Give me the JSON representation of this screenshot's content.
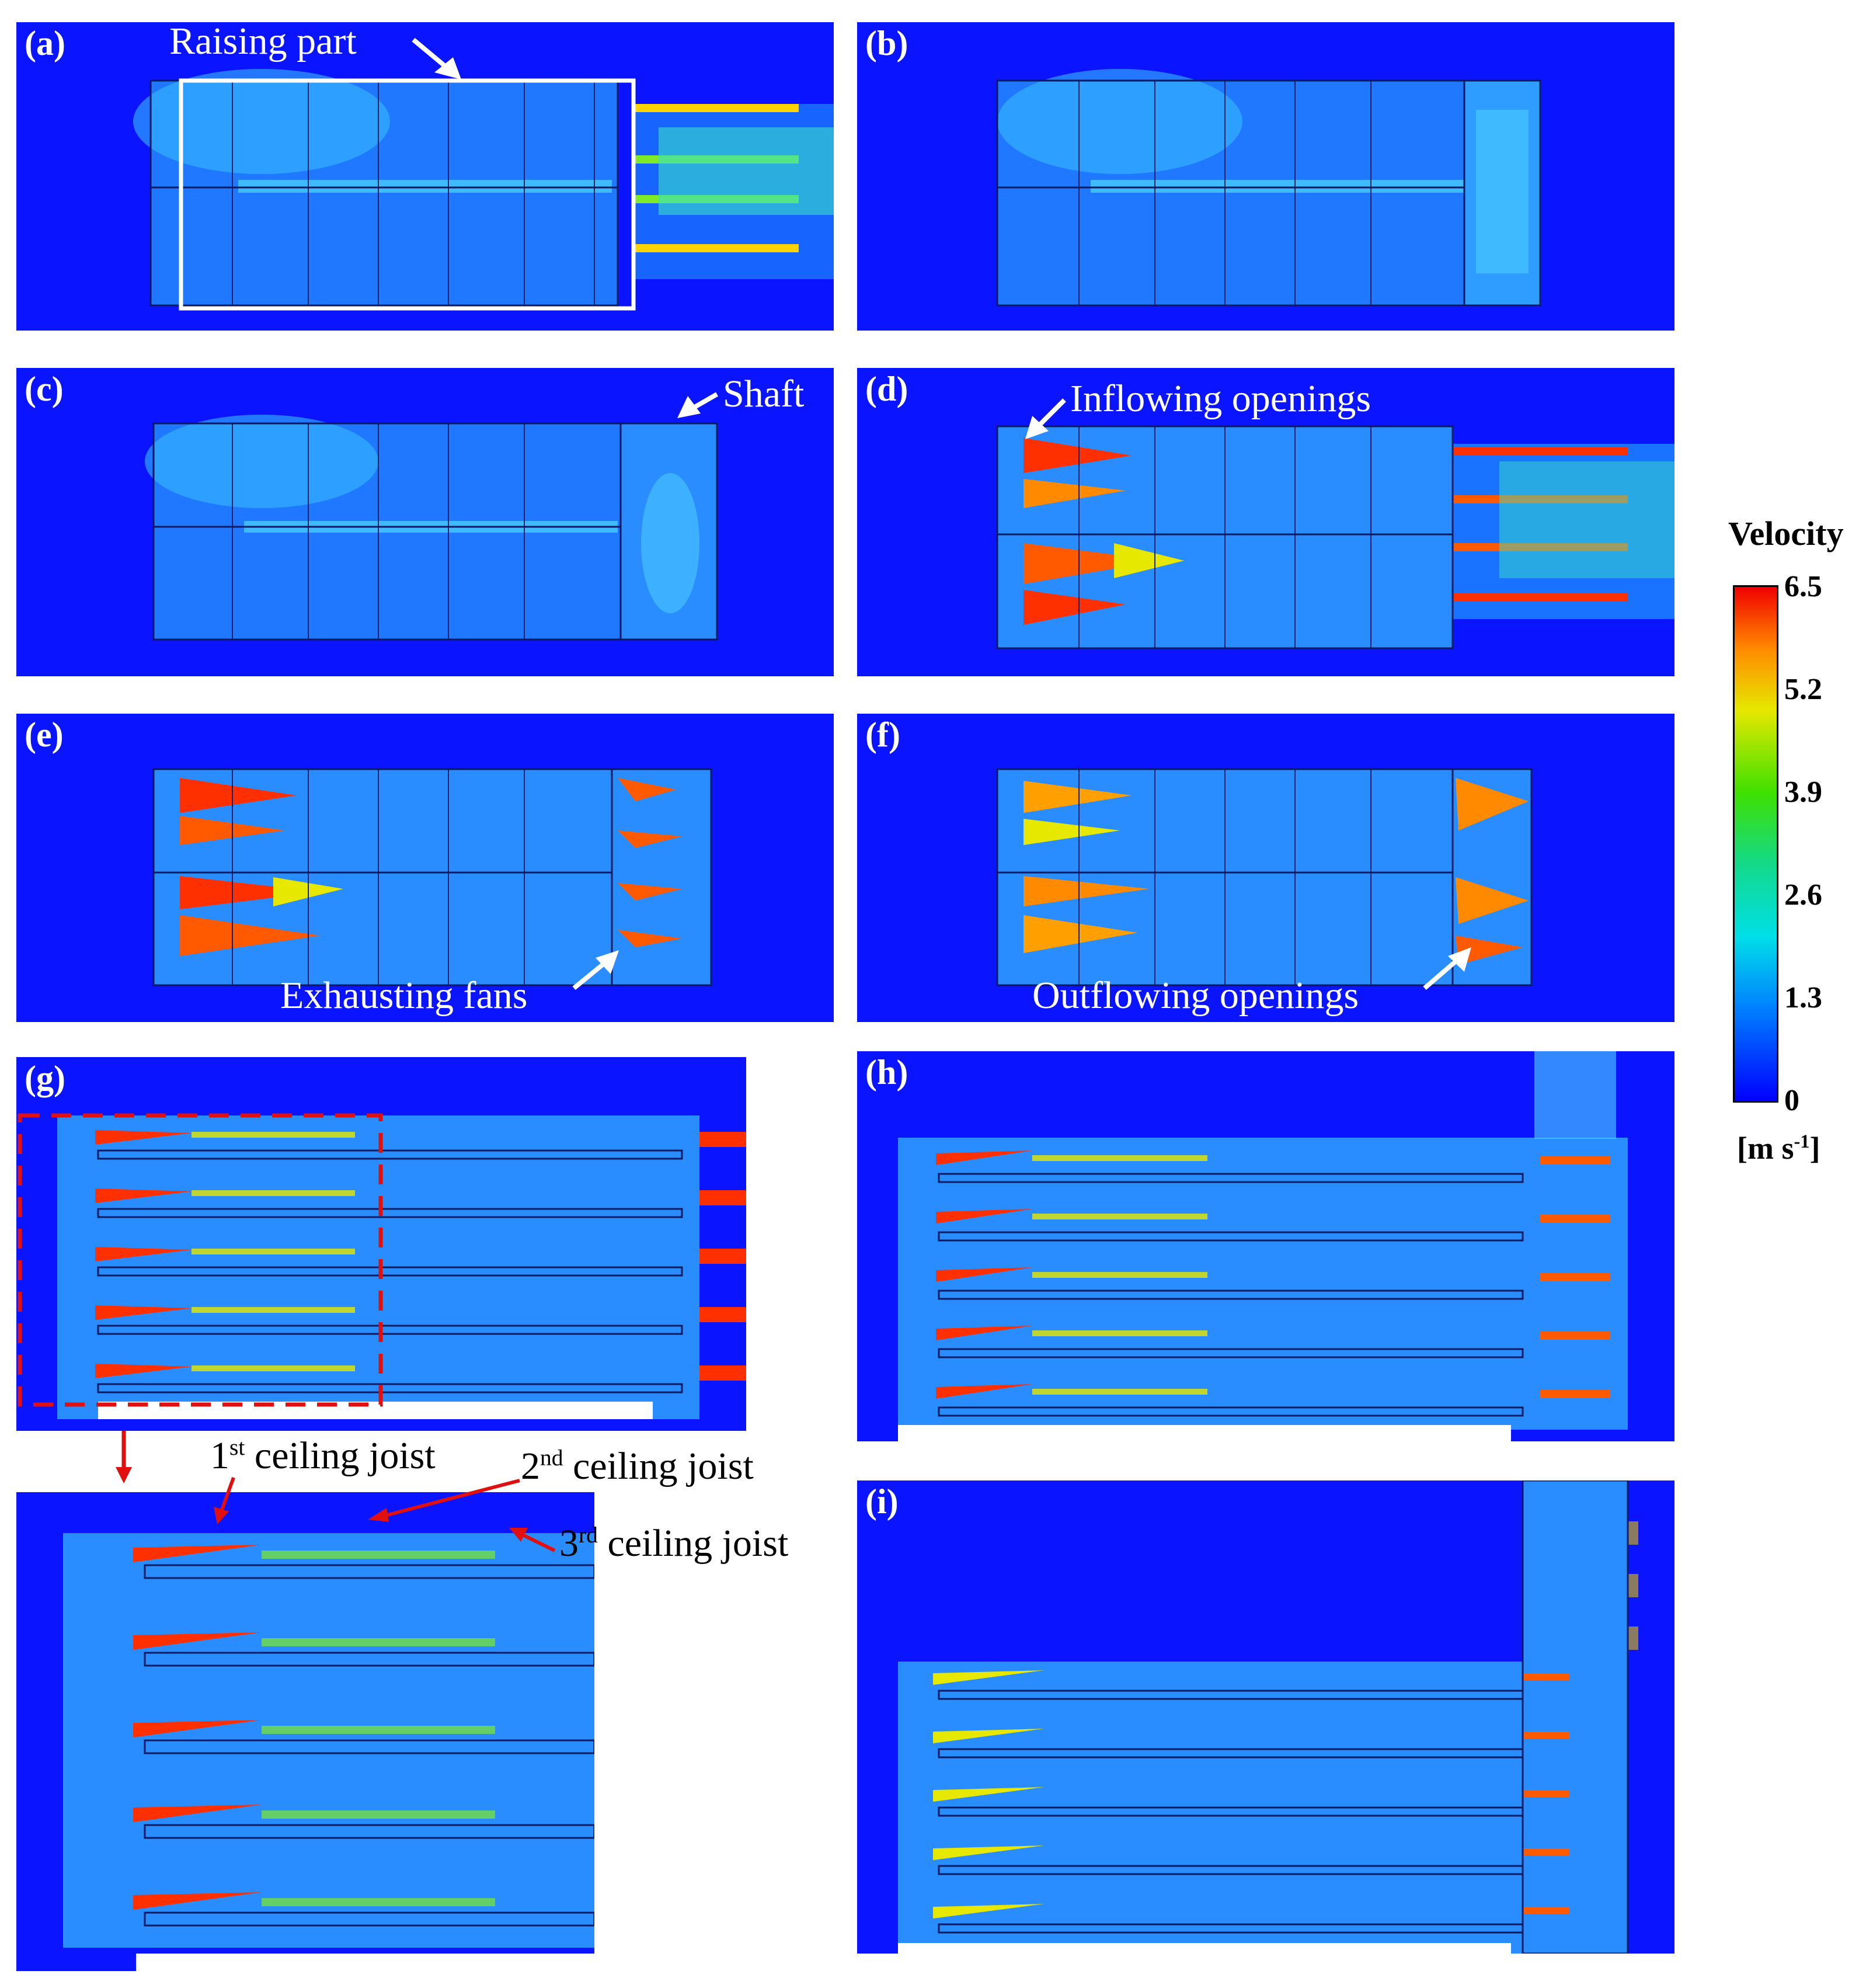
{
  "panels": {
    "a": {
      "label": "(a)",
      "annotation": "Raising part"
    },
    "b": {
      "label": "(b)"
    },
    "c": {
      "label": "(c)",
      "annotation": "Shaft"
    },
    "d": {
      "label": "(d)",
      "annotation": "Inflowing openings"
    },
    "e": {
      "label": "(e)",
      "annotation": "Exhausting fans"
    },
    "f": {
      "label": "(f)",
      "annotation": "Outflowing openings"
    },
    "g": {
      "label": "(g)"
    },
    "h": {
      "label": "(h)"
    },
    "i": {
      "label": "(i)"
    }
  },
  "zoom": {
    "joist1": {
      "n": "1",
      "sup": "st",
      "text": " ceiling joist"
    },
    "joist2": {
      "n": "2",
      "sup": "nd",
      "text": " ceiling joist"
    },
    "joist3": {
      "n": "3",
      "sup": "rd",
      "text": " ceiling joist"
    }
  },
  "colorbar": {
    "title": "Velocity",
    "ticks": [
      "6.5",
      "5.2",
      "3.9",
      "2.6",
      "1.3",
      "0"
    ],
    "unit_main": "[m s",
    "unit_sup": "-1",
    "unit_end": "]"
  },
  "colors": {
    "background": "#0a14ff",
    "highlight_box": "#ffffff",
    "zoom_box": "#e01010"
  }
}
